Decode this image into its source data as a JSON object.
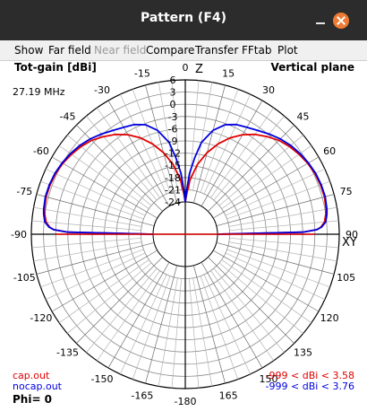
{
  "window": {
    "title": "Pattern  (F4)"
  },
  "menu": [
    {
      "label": "Show",
      "enabled": true
    },
    {
      "label": "Far field",
      "enabled": true
    },
    {
      "label": "Near field",
      "enabled": false
    },
    {
      "label": "Compare",
      "enabled": true
    },
    {
      "label": "Transfer",
      "enabled": true
    },
    {
      "label": "FFtab",
      "enabled": true
    },
    {
      "label": "Plot",
      "enabled": true
    }
  ],
  "plot": {
    "gain_label": "Tot-gain [dBi]",
    "plane_label": "Vertical plane",
    "frequency": "27.19 MHz",
    "phi_label": "Phi= 0",
    "z_label": "Z",
    "xy_label": "XY",
    "angle_labels": [
      "0",
      "15",
      "30",
      "45",
      "60",
      "75",
      "90",
      "105",
      "120",
      "135",
      "150",
      "165",
      "-180",
      "-165",
      "-150",
      "-135",
      "-120",
      "-105",
      "-90",
      "-75",
      "-60",
      "-45",
      "-30",
      "-15"
    ],
    "radial_labels": [
      "6",
      "3",
      "0",
      "-3",
      "-6",
      "-9",
      "-12",
      "-15",
      "-18",
      "-21",
      "-24"
    ],
    "legend": [
      {
        "file": "cap.out",
        "range": "-999 < dBi < 3.58",
        "color": "#e00000"
      },
      {
        "file": "nocap.out",
        "range": "-999 < dBi < 3.76",
        "color": "#0000e0"
      }
    ]
  },
  "chart_data": {
    "type": "polar",
    "angle_unit": "degrees elevation from horizon",
    "r_unit": "dBi",
    "r_range": [
      -24,
      6
    ],
    "series": [
      {
        "name": "cap.out",
        "color": "#e00000",
        "points": [
          [
            0,
            -24
          ],
          [
            1,
            -3
          ],
          [
            2,
            0.5
          ],
          [
            3,
            1.5
          ],
          [
            5,
            2.5
          ],
          [
            8,
            3.0
          ],
          [
            10,
            3.3
          ],
          [
            15,
            3.58
          ],
          [
            20,
            3.5
          ],
          [
            25,
            3.3
          ],
          [
            30,
            2.9
          ],
          [
            35,
            2.3
          ],
          [
            40,
            1.6
          ],
          [
            45,
            0.7
          ],
          [
            50,
            -0.6
          ],
          [
            55,
            -2.0
          ],
          [
            60,
            -3.7
          ],
          [
            65,
            -5.8
          ],
          [
            70,
            -8.3
          ],
          [
            75,
            -11.2
          ],
          [
            80,
            -14.5
          ],
          [
            85,
            -18.5
          ],
          [
            88,
            -22
          ],
          [
            90,
            -24
          ]
        ]
      },
      {
        "name": "nocap.out",
        "color": "#0000e0",
        "points": [
          [
            0,
            -24
          ],
          [
            1,
            -3
          ],
          [
            2,
            0.5
          ],
          [
            3,
            1.7
          ],
          [
            5,
            2.8
          ],
          [
            8,
            3.3
          ],
          [
            10,
            3.5
          ],
          [
            15,
            3.76
          ],
          [
            20,
            3.7
          ],
          [
            25,
            3.5
          ],
          [
            30,
            3.1
          ],
          [
            35,
            2.6
          ],
          [
            40,
            2.0
          ],
          [
            45,
            1.2
          ],
          [
            50,
            0.2
          ],
          [
            55,
            -0.8
          ],
          [
            60,
            -1.6
          ],
          [
            65,
            -2.2
          ],
          [
            70,
            -3.3
          ],
          [
            75,
            -5.5
          ],
          [
            80,
            -9
          ],
          [
            83,
            -13
          ],
          [
            86,
            -17
          ],
          [
            88,
            -21
          ],
          [
            90,
            -24
          ]
        ]
      }
    ]
  }
}
